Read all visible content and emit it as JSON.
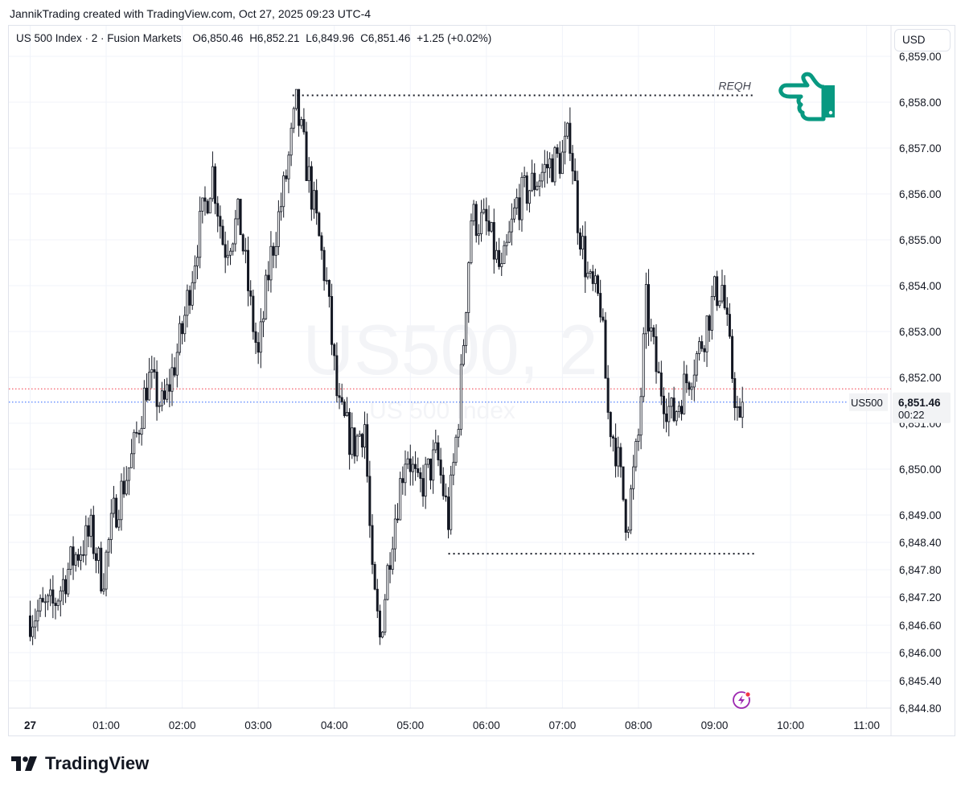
{
  "header": {
    "text": "JannikTrading created with TradingView.com, Oct 27, 2025 09:23 UTC-4"
  },
  "legend": {
    "symbol": "US 500 Index · 2 · Fusion Markets",
    "open": "O6,850.46",
    "high": "H6,852.21",
    "low": "L6,849.96",
    "close": "C6,851.46",
    "change": "+1.25 (+0.02%)"
  },
  "currency_button": "USD",
  "watermark": {
    "big": "US500, 2",
    "small": "US 500 Index"
  },
  "price_tag": {
    "symbol": "US500",
    "price": "6,851.46",
    "countdown": "00:22"
  },
  "footer": {
    "logo_text": "TradingView"
  },
  "colors": {
    "candle": "#131722",
    "last_price_line": "#2962ff",
    "prev_close_line": "#f23645",
    "drawing_icon": "#089981",
    "grid": "#f0f3fa",
    "flash_icon": "#9c27b0"
  },
  "chart_data": {
    "type": "candlestick",
    "title": "",
    "ylim": [
      6844.8,
      6859.0
    ],
    "y_ticks": [
      6844.8,
      6845.4,
      6846.0,
      6846.6,
      6847.2,
      6847.8,
      6848.4,
      6849.0,
      6850.0,
      6851.0,
      6852.0,
      6853.0,
      6854.0,
      6855.0,
      6856.0,
      6857.0,
      6858.0,
      6859.0
    ],
    "y_tick_labels": [
      "6,844.80",
      "6,845.40",
      "6,846.00",
      "6,846.60",
      "6,847.20",
      "6,847.80",
      "6,848.40",
      "6,849.00",
      "6,850.00",
      "6,851.00",
      "6,852.00",
      "6,853.00",
      "6,854.00",
      "6,855.00",
      "6,856.00",
      "6,857.00",
      "6,858.00",
      "6,859.00"
    ],
    "x_tick_labels": [
      "27",
      "01:00",
      "02:00",
      "03:00",
      "04:00",
      "05:00",
      "06:00",
      "07:00",
      "08:00",
      "09:00",
      "10:00",
      "11:00"
    ],
    "x_tick_hours": [
      0,
      1,
      2,
      3,
      4,
      5,
      6,
      7,
      8,
      9,
      10,
      11
    ],
    "xlim_hours": [
      -0.28,
      11.3
    ],
    "last_price": 6851.46,
    "previous_close": 6851.75,
    "annotations": [
      {
        "text": "REQH",
        "y": 6858.15,
        "x_from_hours": 3.45,
        "x_to_hours": 9.5
      },
      {
        "text": "",
        "y": 6848.15,
        "x_from_hours": 5.5,
        "x_to_hours": 9.55
      }
    ],
    "key_points": [
      {
        "t": 0.0,
        "p": 6846.8
      },
      {
        "t": 0.3,
        "p": 6847.0
      },
      {
        "t": 0.55,
        "p": 6848.0
      },
      {
        "t": 0.8,
        "p": 6848.6
      },
      {
        "t": 0.95,
        "p": 6847.6
      },
      {
        "t": 1.1,
        "p": 6849.0
      },
      {
        "t": 1.35,
        "p": 6850.3
      },
      {
        "t": 1.55,
        "p": 6852.0
      },
      {
        "t": 1.75,
        "p": 6851.3
      },
      {
        "t": 2.0,
        "p": 6853.0
      },
      {
        "t": 2.2,
        "p": 6855.0
      },
      {
        "t": 2.4,
        "p": 6856.5
      },
      {
        "t": 2.55,
        "p": 6854.8
      },
      {
        "t": 2.75,
        "p": 6855.5
      },
      {
        "t": 2.9,
        "p": 6853.5
      },
      {
        "t": 3.0,
        "p": 6852.4
      },
      {
        "t": 3.15,
        "p": 6854.5
      },
      {
        "t": 3.35,
        "p": 6856.2
      },
      {
        "t": 3.5,
        "p": 6857.9
      },
      {
        "t": 3.7,
        "p": 6856.0
      },
      {
        "t": 3.9,
        "p": 6854.0
      },
      {
        "t": 4.05,
        "p": 6851.3
      },
      {
        "t": 4.25,
        "p": 6850.5
      },
      {
        "t": 4.4,
        "p": 6851.0
      },
      {
        "t": 4.5,
        "p": 6847.5
      },
      {
        "t": 4.6,
        "p": 6846.3
      },
      {
        "t": 4.75,
        "p": 6848.5
      },
      {
        "t": 4.95,
        "p": 6850.5
      },
      {
        "t": 5.1,
        "p": 6849.5
      },
      {
        "t": 5.35,
        "p": 6850.3
      },
      {
        "t": 5.5,
        "p": 6848.9
      },
      {
        "t": 5.65,
        "p": 6851.5
      },
      {
        "t": 5.8,
        "p": 6855.5
      },
      {
        "t": 6.0,
        "p": 6855.3
      },
      {
        "t": 6.2,
        "p": 6854.2
      },
      {
        "t": 6.4,
        "p": 6855.8
      },
      {
        "t": 6.6,
        "p": 6856.2
      },
      {
        "t": 6.8,
        "p": 6856.6
      },
      {
        "t": 7.0,
        "p": 6856.8
      },
      {
        "t": 7.1,
        "p": 6857.3
      },
      {
        "t": 7.2,
        "p": 6855.5
      },
      {
        "t": 7.35,
        "p": 6854.0
      },
      {
        "t": 7.5,
        "p": 6853.6
      },
      {
        "t": 7.6,
        "p": 6851.2
      },
      {
        "t": 7.7,
        "p": 6850.5
      },
      {
        "t": 7.85,
        "p": 6848.8
      },
      {
        "t": 8.0,
        "p": 6850.7
      },
      {
        "t": 8.1,
        "p": 6853.6
      },
      {
        "t": 8.25,
        "p": 6852.0
      },
      {
        "t": 8.45,
        "p": 6851.1
      },
      {
        "t": 8.6,
        "p": 6851.8
      },
      {
        "t": 8.8,
        "p": 6852.6
      },
      {
        "t": 9.0,
        "p": 6853.8
      },
      {
        "t": 9.1,
        "p": 6854.0
      },
      {
        "t": 9.2,
        "p": 6852.5
      },
      {
        "t": 9.35,
        "p": 6850.6
      },
      {
        "t": 9.38,
        "p": 6851.46
      }
    ]
  }
}
